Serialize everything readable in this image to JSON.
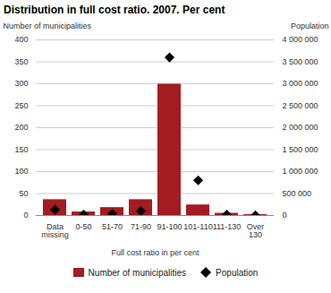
{
  "chart_data": {
    "type": "bar",
    "title": "Distribution in full cost ratio. 2007. Per cent",
    "x_label": "Full cost ratio in per cent",
    "y_label": "Number of municipalities",
    "y2_label": "Population",
    "categories": [
      "Data missing",
      "0-50",
      "51-70",
      "71-90",
      "91-100",
      "101-110",
      "111-130",
      "Over 130"
    ],
    "series": [
      {
        "name": "Number of municipalities",
        "type": "bar",
        "color": "#a31c22",
        "values": [
          36,
          8,
          18,
          36,
          299,
          24,
          5,
          2
        ]
      },
      {
        "name": "Population",
        "type": "scatter",
        "marker": "diamond",
        "color": "#000000",
        "axis": "y2",
        "values": [
          130000,
          20000,
          40000,
          100000,
          3600000,
          800000,
          20000,
          5000
        ]
      }
    ],
    "ylim": [
      0,
      400
    ],
    "yticks": [
      0,
      50,
      100,
      150,
      200,
      250,
      300,
      350,
      400
    ],
    "y2lim": [
      0,
      4000000
    ],
    "y2ticks": [
      0,
      {
        "value": 500000,
        "label": "500 000"
      },
      {
        "value": 1000000,
        "label": "1 000 000"
      },
      {
        "value": 1500000,
        "label": "1 500 000"
      },
      {
        "value": 2000000,
        "label": "2 000 000"
      },
      {
        "value": 2500000,
        "label": "2 500 000"
      },
      {
        "value": 3000000,
        "label": "3 000 000"
      },
      {
        "value": 3500000,
        "label": "3 500 000"
      },
      {
        "value": 4000000,
        "label": "4 000 000"
      }
    ],
    "grid": true,
    "legend": "bottom"
  }
}
